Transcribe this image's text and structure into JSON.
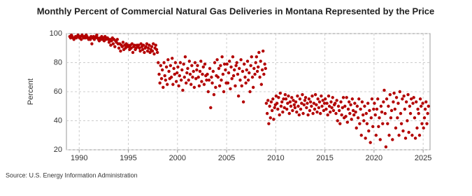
{
  "chart_data": {
    "type": "scatter",
    "title": "Monthly Percent of Commercial Natural Gas Deliveries in Montana Represented by the Price",
    "y_label": "Percent",
    "source": "Source: U.S. Energy Information Administration",
    "color": "#b30000",
    "grid": true,
    "xlim": [
      1988.7,
      2025.7
    ],
    "xticks": [
      1990,
      1995,
      2000,
      2005,
      2010,
      2015,
      2020,
      2025
    ],
    "ylim": [
      20,
      100
    ],
    "yticks": [
      20,
      40,
      60,
      80,
      100
    ],
    "x": [
      1989.04,
      1989.13,
      1989.21,
      1989.29,
      1989.38,
      1989.46,
      1989.54,
      1989.63,
      1989.71,
      1989.79,
      1989.88,
      1989.96,
      1990.04,
      1990.13,
      1990.21,
      1990.29,
      1990.38,
      1990.46,
      1990.54,
      1990.63,
      1990.71,
      1990.79,
      1990.88,
      1990.96,
      1991.04,
      1991.13,
      1991.21,
      1991.29,
      1991.38,
      1991.46,
      1991.54,
      1991.63,
      1991.71,
      1991.79,
      1991.88,
      1991.96,
      1992.04,
      1992.13,
      1992.21,
      1992.29,
      1992.38,
      1992.46,
      1992.54,
      1992.63,
      1992.71,
      1992.79,
      1992.88,
      1992.96,
      1993.04,
      1993.13,
      1993.21,
      1993.29,
      1993.38,
      1993.46,
      1993.54,
      1993.63,
      1993.71,
      1993.79,
      1993.88,
      1993.96,
      1994.04,
      1994.13,
      1994.21,
      1994.29,
      1994.38,
      1994.46,
      1994.54,
      1994.63,
      1994.71,
      1994.79,
      1994.88,
      1994.96,
      1995.04,
      1995.13,
      1995.21,
      1995.29,
      1995.38,
      1995.46,
      1995.54,
      1995.63,
      1995.71,
      1995.79,
      1995.88,
      1995.96,
      1996.04,
      1996.13,
      1996.21,
      1996.29,
      1996.38,
      1996.46,
      1996.54,
      1996.63,
      1996.71,
      1996.79,
      1996.88,
      1996.96,
      1997.04,
      1997.13,
      1997.21,
      1997.29,
      1997.38,
      1997.46,
      1997.54,
      1997.63,
      1997.71,
      1997.79,
      1997.88,
      1997.96,
      1998.04,
      1998.13,
      1998.21,
      1998.29,
      1998.38,
      1998.46,
      1998.54,
      1998.63,
      1998.71,
      1998.79,
      1998.88,
      1998.96,
      1999.04,
      1999.13,
      1999.21,
      1999.29,
      1999.38,
      1999.46,
      1999.54,
      1999.63,
      1999.71,
      1999.79,
      1999.88,
      1999.96,
      2000.04,
      2000.13,
      2000.21,
      2000.29,
      2000.38,
      2000.46,
      2000.54,
      2000.63,
      2000.71,
      2000.79,
      2000.88,
      2000.96,
      2001.04,
      2001.13,
      2001.21,
      2001.29,
      2001.38,
      2001.46,
      2001.54,
      2001.63,
      2001.71,
      2001.79,
      2001.88,
      2001.96,
      2002.04,
      2002.13,
      2002.21,
      2002.29,
      2002.38,
      2002.46,
      2002.54,
      2002.63,
      2002.71,
      2002.79,
      2002.88,
      2002.96,
      2003.04,
      2003.13,
      2003.21,
      2003.29,
      2003.38,
      2003.46,
      2003.54,
      2003.63,
      2003.71,
      2003.79,
      2003.88,
      2003.96,
      2004.04,
      2004.13,
      2004.21,
      2004.29,
      2004.38,
      2004.46,
      2004.54,
      2004.63,
      2004.71,
      2004.79,
      2004.88,
      2004.96,
      2005.04,
      2005.13,
      2005.21,
      2005.29,
      2005.38,
      2005.46,
      2005.54,
      2005.63,
      2005.71,
      2005.79,
      2005.88,
      2005.96,
      2006.04,
      2006.13,
      2006.21,
      2006.29,
      2006.38,
      2006.46,
      2006.54,
      2006.63,
      2006.71,
      2006.79,
      2006.88,
      2006.96,
      2007.04,
      2007.13,
      2007.21,
      2007.29,
      2007.38,
      2007.46,
      2007.54,
      2007.63,
      2007.71,
      2007.79,
      2007.88,
      2007.96,
      2008.04,
      2008.13,
      2008.21,
      2008.29,
      2008.38,
      2008.46,
      2008.54,
      2008.63,
      2008.71,
      2008.79,
      2008.88,
      2008.96,
      2009.04,
      2009.13,
      2009.21,
      2009.29,
      2009.38,
      2009.46,
      2009.54,
      2009.63,
      2009.71,
      2009.79,
      2009.88,
      2009.96,
      2010.04,
      2010.13,
      2010.21,
      2010.29,
      2010.38,
      2010.46,
      2010.54,
      2010.63,
      2010.71,
      2010.79,
      2010.88,
      2010.96,
      2011.04,
      2011.13,
      2011.21,
      2011.29,
      2011.38,
      2011.46,
      2011.54,
      2011.63,
      2011.71,
      2011.79,
      2011.88,
      2011.96,
      2012.04,
      2012.13,
      2012.21,
      2012.29,
      2012.38,
      2012.46,
      2012.54,
      2012.63,
      2012.71,
      2012.79,
      2012.88,
      2012.96,
      2013.04,
      2013.13,
      2013.21,
      2013.29,
      2013.38,
      2013.46,
      2013.54,
      2013.63,
      2013.71,
      2013.79,
      2013.88,
      2013.96,
      2014.04,
      2014.13,
      2014.21,
      2014.29,
      2014.38,
      2014.46,
      2014.54,
      2014.63,
      2014.71,
      2014.79,
      2014.88,
      2014.96,
      2015.04,
      2015.13,
      2015.21,
      2015.29,
      2015.38,
      2015.46,
      2015.54,
      2015.63,
      2015.71,
      2015.79,
      2015.88,
      2015.96,
      2016.04,
      2016.13,
      2016.21,
      2016.29,
      2016.38,
      2016.46,
      2016.54,
      2016.63,
      2016.71,
      2016.79,
      2016.88,
      2016.96,
      2017.04,
      2017.13,
      2017.21,
      2017.29,
      2017.38,
      2017.46,
      2017.54,
      2017.63,
      2017.71,
      2017.79,
      2017.88,
      2017.96,
      2018.04,
      2018.13,
      2018.21,
      2018.29,
      2018.38,
      2018.46,
      2018.54,
      2018.63,
      2018.71,
      2018.79,
      2018.88,
      2018.96,
      2019.04,
      2019.13,
      2019.21,
      2019.29,
      2019.38,
      2019.46,
      2019.54,
      2019.63,
      2019.71,
      2019.79,
      2019.88,
      2019.96,
      2020.04,
      2020.13,
      2020.21,
      2020.29,
      2020.38,
      2020.46,
      2020.54,
      2020.63,
      2020.71,
      2020.79,
      2020.88,
      2020.96,
      2021.04,
      2021.13,
      2021.21,
      2021.29,
      2021.38,
      2021.46,
      2021.54,
      2021.63,
      2021.71,
      2021.79,
      2021.88,
      2021.96,
      2022.04,
      2022.13,
      2022.21,
      2022.29,
      2022.38,
      2022.46,
      2022.54,
      2022.63,
      2022.71,
      2022.79,
      2022.88,
      2022.96,
      2023.04,
      2023.13,
      2023.21,
      2023.29,
      2023.38,
      2023.46,
      2023.54,
      2023.63,
      2023.71,
      2023.79,
      2023.88,
      2023.96,
      2024.04,
      2024.13,
      2024.21,
      2024.29,
      2024.38,
      2024.46,
      2024.54,
      2024.63,
      2024.71,
      2024.79,
      2024.88,
      2024.96,
      2025.04,
      2025.13,
      2025.21,
      2025.29,
      2025.38,
      2025.46,
      2025.54
    ],
    "values": [
      98,
      97,
      99,
      98,
      97,
      96,
      97,
      98,
      97,
      98,
      99,
      98,
      97,
      98,
      96,
      99,
      98,
      97,
      98,
      97,
      99,
      98,
      97,
      96,
      97,
      96,
      98,
      93,
      97,
      98,
      96,
      97,
      98,
      99,
      97,
      96,
      95,
      97,
      96,
      98,
      96,
      97,
      95,
      98,
      96,
      97,
      97,
      96,
      94,
      96,
      92,
      95,
      97,
      93,
      96,
      91,
      95,
      94,
      96,
      93,
      90,
      93,
      88,
      92,
      91,
      94,
      89,
      92,
      90,
      93,
      91,
      92,
      91,
      89,
      92,
      90,
      93,
      87,
      91,
      92,
      89,
      90,
      92,
      91,
      92,
      90,
      88,
      93,
      91,
      89,
      92,
      87,
      90,
      91,
      93,
      88,
      90,
      92,
      87,
      89,
      91,
      88,
      93,
      86,
      90,
      92,
      89,
      87,
      80,
      72,
      66,
      78,
      69,
      75,
      63,
      80,
      71,
      68,
      77,
      65,
      82,
      74,
      69,
      78,
      70,
      83,
      65,
      76,
      72,
      80,
      67,
      73,
      77,
      64,
      71,
      80,
      68,
      75,
      61,
      79,
      70,
      84,
      66,
      73,
      76,
      68,
      81,
      72,
      65,
      78,
      70,
      74,
      63,
      80,
      69,
      75,
      78,
      70,
      64,
      74,
      81,
      67,
      72,
      77,
      65,
      79,
      71,
      68,
      72,
      60,
      68,
      76,
      49,
      70,
      66,
      74,
      58,
      80,
      63,
      71,
      82,
      70,
      76,
      64,
      78,
      68,
      84,
      72,
      60,
      79,
      75,
      66,
      79,
      66,
      73,
      81,
      62,
      77,
      69,
      84,
      71,
      75,
      64,
      78,
      80,
      72,
      57,
      76,
      68,
      82,
      64,
      74,
      53,
      79,
      70,
      66,
      75,
      81,
      68,
      73,
      60,
      78,
      84,
      70,
      63,
      76,
      72,
      80,
      84,
      74,
      77,
      87,
      70,
      81,
      65,
      75,
      88,
      72,
      79,
      76,
      52,
      45,
      54,
      38,
      50,
      42,
      53,
      47,
      55,
      41,
      49,
      51,
      57,
      52,
      48,
      56,
      44,
      59,
      50,
      53,
      46,
      55,
      49,
      58,
      55,
      48,
      52,
      57,
      45,
      53,
      50,
      56,
      47,
      54,
      51,
      49,
      53,
      46,
      57,
      50,
      44,
      55,
      48,
      52,
      58,
      45,
      51,
      54,
      56,
      49,
      52,
      44,
      55,
      47,
      53,
      50,
      57,
      45,
      52,
      48,
      58,
      51,
      46,
      55,
      49,
      53,
      45,
      57,
      50,
      54,
      47,
      52,
      55,
      48,
      52,
      44,
      57,
      50,
      46,
      53,
      49,
      56,
      47,
      51,
      52,
      45,
      54,
      40,
      50,
      47,
      38,
      53,
      44,
      49,
      56,
      42,
      50,
      43,
      56,
      39,
      48,
      53,
      45,
      51,
      41,
      55,
      47,
      44,
      52,
      46,
      35,
      50,
      42,
      55,
      38,
      48,
      30,
      53,
      44,
      40,
      50,
      28,
      45,
      38,
      52,
      33,
      47,
      25,
      42,
      55,
      36,
      48,
      52,
      44,
      30,
      48,
      55,
      36,
      42,
      27,
      50,
      46,
      38,
      53,
      61,
      45,
      22,
      55,
      38,
      50,
      30,
      58,
      42,
      47,
      27,
      53,
      59,
      48,
      35,
      56,
      42,
      52,
      30,
      60,
      45,
      38,
      55,
      33,
      57,
      48,
      28,
      53,
      40,
      58,
      32,
      50,
      45,
      55,
      30,
      52,
      56,
      42,
      28,
      53,
      35,
      48,
      45,
      30,
      55,
      50,
      38,
      52,
      35,
      42,
      48,
      53,
      38,
      45,
      50
    ]
  }
}
